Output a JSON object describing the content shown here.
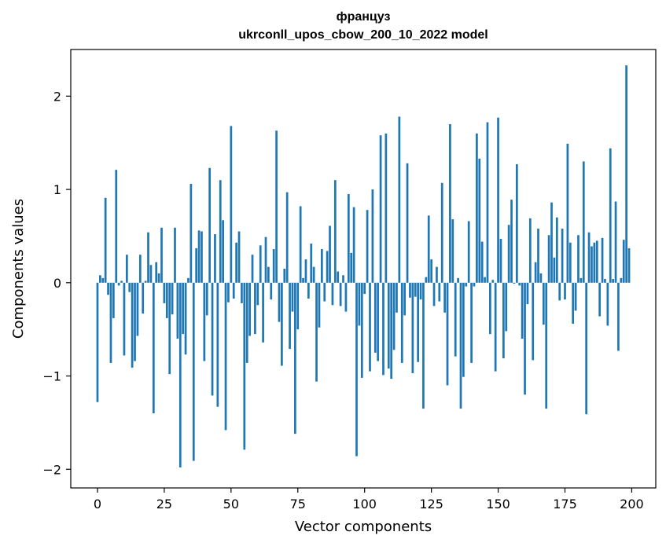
{
  "chart_data": {
    "type": "bar",
    "title_line1": "француз",
    "title_line2": "ukrconll_upos_cbow_200_10_2022 model",
    "xlabel": "Vector components",
    "ylabel": "Components values",
    "xlim": [
      -10,
      209
    ],
    "ylim": [
      -2.2,
      2.5
    ],
    "xticks": [
      0,
      25,
      50,
      75,
      100,
      125,
      150,
      175,
      200
    ],
    "yticks": [
      -2,
      -1,
      0,
      1,
      2
    ],
    "ytick_labels": [
      "−2",
      "−1",
      "0",
      "1",
      "2"
    ],
    "bar_color": "#1f77b4",
    "grid": false,
    "x": [
      0,
      1,
      2,
      3,
      4,
      5,
      6,
      7,
      8,
      9,
      10,
      11,
      12,
      13,
      14,
      15,
      16,
      17,
      18,
      19,
      20,
      21,
      22,
      23,
      24,
      25,
      26,
      27,
      28,
      29,
      30,
      31,
      32,
      33,
      34,
      35,
      36,
      37,
      38,
      39,
      40,
      41,
      42,
      43,
      44,
      45,
      46,
      47,
      48,
      49,
      50,
      51,
      52,
      53,
      54,
      55,
      56,
      57,
      58,
      59,
      60,
      61,
      62,
      63,
      64,
      65,
      66,
      67,
      68,
      69,
      70,
      71,
      72,
      73,
      74,
      75,
      76,
      77,
      78,
      79,
      80,
      81,
      82,
      83,
      84,
      85,
      86,
      87,
      88,
      89,
      90,
      91,
      92,
      93,
      94,
      95,
      96,
      97,
      98,
      99,
      100,
      101,
      102,
      103,
      104,
      105,
      106,
      107,
      108,
      109,
      110,
      111,
      112,
      113,
      114,
      115,
      116,
      117,
      118,
      119,
      120,
      121,
      122,
      123,
      124,
      125,
      126,
      127,
      128,
      129,
      130,
      131,
      132,
      133,
      134,
      135,
      136,
      137,
      138,
      139,
      140,
      141,
      142,
      143,
      144,
      145,
      146,
      147,
      148,
      149,
      150,
      151,
      152,
      153,
      154,
      155,
      156,
      157,
      158,
      159,
      160,
      161,
      162,
      163,
      164,
      165,
      166,
      167,
      168,
      169,
      170,
      171,
      172,
      173,
      174,
      175,
      176,
      177,
      178,
      179,
      180,
      181,
      182,
      183,
      184,
      185,
      186,
      187,
      188,
      189,
      190,
      191,
      192,
      193,
      194,
      195,
      196,
      197,
      198,
      199
    ],
    "values": [
      -1.28,
      0.08,
      0.05,
      0.91,
      -0.13,
      -0.86,
      -0.38,
      1.21,
      -0.03,
      0.02,
      -0.78,
      0.3,
      -0.1,
      -0.91,
      -0.84,
      -0.57,
      0.3,
      -0.33,
      0.02,
      0.54,
      0.19,
      -1.4,
      0.22,
      0.1,
      0.59,
      -0.22,
      -0.38,
      -0.98,
      -0.34,
      0.59,
      -0.6,
      -1.98,
      -0.55,
      -0.77,
      0.05,
      1.06,
      -1.91,
      0.37,
      0.56,
      0.55,
      -0.84,
      -0.35,
      1.23,
      -1.21,
      0.52,
      -1.33,
      1.1,
      0.67,
      -1.58,
      -0.21,
      1.68,
      -0.17,
      0.43,
      0.55,
      -0.22,
      -1.79,
      -0.86,
      -0.57,
      0.3,
      -0.55,
      -0.24,
      0.4,
      -0.64,
      0.49,
      0.17,
      -0.18,
      0.36,
      1.63,
      -0.42,
      -0.89,
      0.15,
      0.97,
      -0.71,
      -0.31,
      -1.62,
      -0.5,
      0.82,
      0.05,
      0.25,
      -0.17,
      0.42,
      0.17,
      -1.06,
      -0.48,
      0.36,
      -0.2,
      0.34,
      0.61,
      -0.24,
      1.1,
      0.12,
      -0.25,
      0.08,
      -0.31,
      0.95,
      0.32,
      0.81,
      -1.86,
      -0.46,
      -1.02,
      -0.12,
      0.78,
      -0.95,
      1.0,
      -0.75,
      -0.84,
      1.58,
      -0.99,
      1.6,
      -0.92,
      -1.03,
      -0.72,
      -0.32,
      1.78,
      -0.86,
      -0.35,
      1.28,
      -0.16,
      -0.97,
      -0.15,
      -0.85,
      -0.18,
      -1.35,
      0.06,
      0.72,
      0.25,
      -0.25,
      0.17,
      -0.2,
      1.07,
      -0.32,
      -1.1,
      1.7,
      0.68,
      -0.79,
      0.05,
      -1.35,
      -1.01,
      -0.04,
      0.66,
      -0.86,
      -0.04,
      1.6,
      1.33,
      0.44,
      0.06,
      1.72,
      -0.55,
      0.03,
      -0.95,
      1.77,
      0.47,
      -0.81,
      -0.52,
      0.62,
      0.89,
      -0.01,
      1.27,
      -0.03,
      -0.6,
      -1.2,
      -0.23,
      0.69,
      -0.83,
      0.22,
      0.58,
      0.1,
      -0.45,
      -1.35,
      0.51,
      0.86,
      0.27,
      0.7,
      -0.19,
      0.58,
      -0.18,
      1.49,
      0.43,
      -0.44,
      -0.3,
      0.51,
      0.05,
      1.3,
      -1.41,
      0.54,
      0.39,
      0.43,
      0.45,
      -0.36,
      0.48,
      0.04,
      -0.46,
      1.44,
      0.04,
      0.87,
      -0.73,
      0.05,
      0.46,
      2.33,
      0.37
    ]
  }
}
